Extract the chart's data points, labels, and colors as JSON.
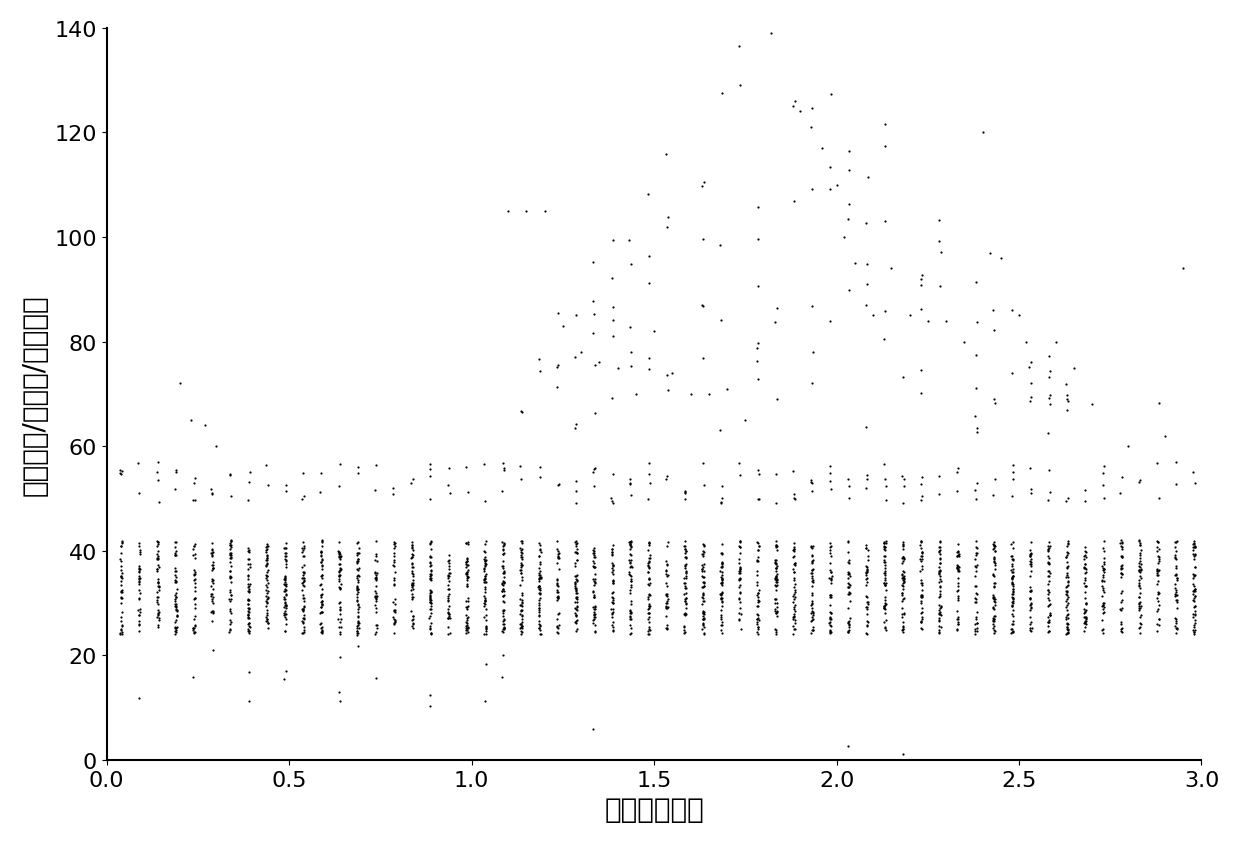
{
  "xlabel": "时间（小时）",
  "ylabel": "实时电价/（美分/千瓦时）",
  "xlim": [
    0,
    3.0
  ],
  "ylim": [
    0,
    140
  ],
  "xticks": [
    0,
    0.5,
    1.0,
    1.5,
    2.0,
    2.5,
    3.0
  ],
  "yticks": [
    0,
    20,
    40,
    60,
    80,
    100,
    120,
    140
  ],
  "marker_size": 2.5,
  "marker_color": "#000000",
  "background_color": "#ffffff",
  "font_size_labels": 20,
  "font_size_ticks": 16
}
